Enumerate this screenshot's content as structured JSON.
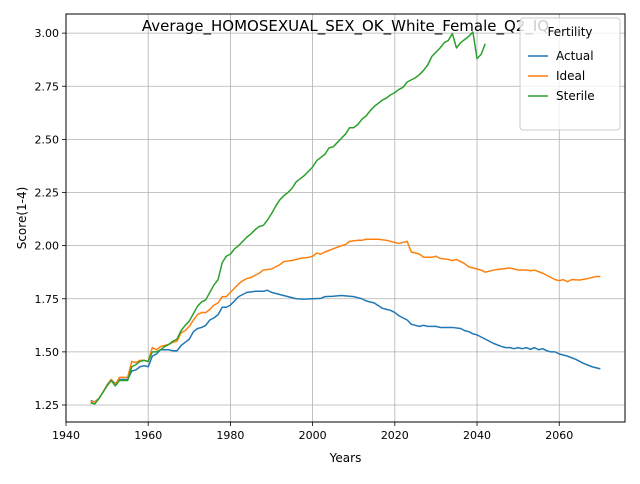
{
  "chart_data": {
    "type": "line",
    "title": "Average_HOMOSEXUAL_SEX_OK_White_Female_Q2_IQ",
    "xlabel": "Years",
    "ylabel": "Score(1-4)",
    "xlim": [
      1940,
      2076
    ],
    "ylim": [
      1.17,
      3.09
    ],
    "x_ticks": [
      1940,
      1960,
      1980,
      2000,
      2020,
      2040,
      2060
    ],
    "x_tick_labels": [
      "1940",
      "1960",
      "1980",
      "2000",
      "2020",
      "2040",
      "2060"
    ],
    "y_ticks": [
      1.25,
      1.5,
      1.75,
      2.0,
      2.25,
      2.5,
      2.75,
      3.0
    ],
    "y_tick_labels": [
      "1.25",
      "1.50",
      "1.75",
      "2.00",
      "2.25",
      "2.50",
      "2.75",
      "3.00"
    ],
    "grid": true,
    "legend": {
      "title": "Fertility",
      "placement": "top-right"
    },
    "series": [
      {
        "name": "Actual",
        "color": "#1f77b4",
        "points": [
          [
            1946,
            1.27
          ],
          [
            1947,
            1.265
          ],
          [
            1948,
            1.28
          ],
          [
            1949,
            1.31
          ],
          [
            1950,
            1.345
          ],
          [
            1951,
            1.37
          ],
          [
            1952,
            1.35
          ],
          [
            1953,
            1.37
          ],
          [
            1954,
            1.37
          ],
          [
            1955,
            1.37
          ],
          [
            1956,
            1.41
          ],
          [
            1957,
            1.415
          ],
          [
            1958,
            1.43
          ],
          [
            1959,
            1.435
          ],
          [
            1960,
            1.43
          ],
          [
            1961,
            1.48
          ],
          [
            1962,
            1.49
          ],
          [
            1963,
            1.51
          ],
          [
            1964,
            1.51
          ],
          [
            1965,
            1.51
          ],
          [
            1966,
            1.505
          ],
          [
            1967,
            1.505
          ],
          [
            1968,
            1.53
          ],
          [
            1969,
            1.545
          ],
          [
            1970,
            1.56
          ],
          [
            1971,
            1.595
          ],
          [
            1972,
            1.61
          ],
          [
            1973,
            1.615
          ],
          [
            1974,
            1.625
          ],
          [
            1975,
            1.65
          ],
          [
            1976,
            1.66
          ],
          [
            1977,
            1.675
          ],
          [
            1978,
            1.71
          ],
          [
            1979,
            1.71
          ],
          [
            1980,
            1.72
          ],
          [
            1981,
            1.74
          ],
          [
            1982,
            1.76
          ],
          [
            1983,
            1.77
          ],
          [
            1984,
            1.78
          ],
          [
            1986,
            1.785
          ],
          [
            1988,
            1.785
          ],
          [
            1989,
            1.79
          ],
          [
            1990,
            1.78
          ],
          [
            1992,
            1.77
          ],
          [
            1994,
            1.76
          ],
          [
            1996,
            1.75
          ],
          [
            1998,
            1.748
          ],
          [
            2000,
            1.75
          ],
          [
            2002,
            1.752
          ],
          [
            2003,
            1.76
          ],
          [
            2005,
            1.762
          ],
          [
            2007,
            1.765
          ],
          [
            2009,
            1.762
          ],
          [
            2010,
            1.76
          ],
          [
            2011,
            1.755
          ],
          [
            2012,
            1.75
          ],
          [
            2013,
            1.74
          ],
          [
            2015,
            1.73
          ],
          [
            2017,
            1.705
          ],
          [
            2018,
            1.7
          ],
          [
            2019,
            1.695
          ],
          [
            2020,
            1.685
          ],
          [
            2021,
            1.67
          ],
          [
            2022,
            1.66
          ],
          [
            2023,
            1.65
          ],
          [
            2024,
            1.63
          ],
          [
            2025,
            1.625
          ],
          [
            2026,
            1.62
          ],
          [
            2027,
            1.625
          ],
          [
            2028,
            1.62
          ],
          [
            2029,
            1.62
          ],
          [
            2030,
            1.62
          ],
          [
            2031,
            1.615
          ],
          [
            2032,
            1.615
          ],
          [
            2034,
            1.615
          ],
          [
            2036,
            1.61
          ],
          [
            2037,
            1.6
          ],
          [
            2038,
            1.595
          ],
          [
            2039,
            1.585
          ],
          [
            2040,
            1.58
          ],
          [
            2042,
            1.56
          ],
          [
            2044,
            1.54
          ],
          [
            2046,
            1.525
          ],
          [
            2047,
            1.52
          ],
          [
            2048,
            1.52
          ],
          [
            2049,
            1.515
          ],
          [
            2050,
            1.52
          ],
          [
            2051,
            1.515
          ],
          [
            2052,
            1.52
          ],
          [
            2053,
            1.512
          ],
          [
            2054,
            1.52
          ],
          [
            2055,
            1.51
          ],
          [
            2056,
            1.515
          ],
          [
            2057,
            1.505
          ],
          [
            2058,
            1.5
          ],
          [
            2059,
            1.5
          ],
          [
            2060,
            1.49
          ],
          [
            2062,
            1.48
          ],
          [
            2064,
            1.465
          ],
          [
            2066,
            1.445
          ],
          [
            2068,
            1.43
          ],
          [
            2070,
            1.42
          ]
        ]
      },
      {
        "name": "Ideal",
        "color": "#ff7f0e",
        "points": [
          [
            1946,
            1.265
          ],
          [
            1947,
            1.265
          ],
          [
            1948,
            1.28
          ],
          [
            1949,
            1.31
          ],
          [
            1950,
            1.345
          ],
          [
            1951,
            1.37
          ],
          [
            1952,
            1.345
          ],
          [
            1953,
            1.38
          ],
          [
            1954,
            1.38
          ],
          [
            1955,
            1.38
          ],
          [
            1956,
            1.455
          ],
          [
            1957,
            1.45
          ],
          [
            1958,
            1.46
          ],
          [
            1959,
            1.46
          ],
          [
            1960,
            1.455
          ],
          [
            1961,
            1.52
          ],
          [
            1962,
            1.51
          ],
          [
            1963,
            1.525
          ],
          [
            1964,
            1.53
          ],
          [
            1965,
            1.535
          ],
          [
            1966,
            1.545
          ],
          [
            1967,
            1.55
          ],
          [
            1968,
            1.59
          ],
          [
            1969,
            1.6
          ],
          [
            1970,
            1.62
          ],
          [
            1971,
            1.65
          ],
          [
            1972,
            1.675
          ],
          [
            1973,
            1.685
          ],
          [
            1974,
            1.685
          ],
          [
            1975,
            1.7
          ],
          [
            1976,
            1.72
          ],
          [
            1977,
            1.73
          ],
          [
            1978,
            1.76
          ],
          [
            1979,
            1.76
          ],
          [
            1980,
            1.78
          ],
          [
            1981,
            1.8
          ],
          [
            1982,
            1.82
          ],
          [
            1983,
            1.835
          ],
          [
            1984,
            1.845
          ],
          [
            1985,
            1.85
          ],
          [
            1986,
            1.86
          ],
          [
            1987,
            1.87
          ],
          [
            1988,
            1.885
          ],
          [
            1990,
            1.89
          ],
          [
            1992,
            1.91
          ],
          [
            1993,
            1.925
          ],
          [
            1995,
            1.93
          ],
          [
            1997,
            1.94
          ],
          [
            1999,
            1.945
          ],
          [
            2000,
            1.95
          ],
          [
            2001,
            1.965
          ],
          [
            2002,
            1.96
          ],
          [
            2003,
            1.97
          ],
          [
            2005,
            1.985
          ],
          [
            2007,
            2.0
          ],
          [
            2008,
            2.005
          ],
          [
            2009,
            2.02
          ],
          [
            2011,
            2.025
          ],
          [
            2012,
            2.025
          ],
          [
            2013,
            2.03
          ],
          [
            2015,
            2.03
          ],
          [
            2016,
            2.03
          ],
          [
            2018,
            2.025
          ],
          [
            2020,
            2.015
          ],
          [
            2021,
            2.01
          ],
          [
            2022,
            2.015
          ],
          [
            2023,
            2.02
          ],
          [
            2024,
            1.97
          ],
          [
            2026,
            1.96
          ],
          [
            2027,
            1.945
          ],
          [
            2029,
            1.945
          ],
          [
            2030,
            1.95
          ],
          [
            2031,
            1.94
          ],
          [
            2033,
            1.935
          ],
          [
            2034,
            1.93
          ],
          [
            2035,
            1.935
          ],
          [
            2036,
            1.925
          ],
          [
            2037,
            1.915
          ],
          [
            2038,
            1.9
          ],
          [
            2040,
            1.89
          ],
          [
            2041,
            1.885
          ],
          [
            2042,
            1.875
          ],
          [
            2044,
            1.885
          ],
          [
            2046,
            1.89
          ],
          [
            2048,
            1.895
          ],
          [
            2049,
            1.89
          ],
          [
            2050,
            1.885
          ],
          [
            2052,
            1.885
          ],
          [
            2053,
            1.882
          ],
          [
            2054,
            1.885
          ],
          [
            2056,
            1.87
          ],
          [
            2057,
            1.86
          ],
          [
            2058,
            1.85
          ],
          [
            2059,
            1.84
          ],
          [
            2060,
            1.835
          ],
          [
            2061,
            1.84
          ],
          [
            2062,
            1.83
          ],
          [
            2063,
            1.84
          ],
          [
            2065,
            1.838
          ],
          [
            2067,
            1.845
          ],
          [
            2069,
            1.855
          ],
          [
            2070,
            1.855
          ]
        ]
      },
      {
        "name": "Sterile",
        "color": "#2ca02c",
        "points": [
          [
            1946,
            1.26
          ],
          [
            1947,
            1.255
          ],
          [
            1948,
            1.28
          ],
          [
            1949,
            1.31
          ],
          [
            1950,
            1.34
          ],
          [
            1951,
            1.365
          ],
          [
            1952,
            1.34
          ],
          [
            1953,
            1.365
          ],
          [
            1954,
            1.365
          ],
          [
            1955,
            1.365
          ],
          [
            1956,
            1.43
          ],
          [
            1957,
            1.44
          ],
          [
            1958,
            1.455
          ],
          [
            1959,
            1.46
          ],
          [
            1960,
            1.455
          ],
          [
            1961,
            1.5
          ],
          [
            1962,
            1.5
          ],
          [
            1963,
            1.51
          ],
          [
            1964,
            1.525
          ],
          [
            1965,
            1.535
          ],
          [
            1966,
            1.55
          ],
          [
            1967,
            1.56
          ],
          [
            1968,
            1.6
          ],
          [
            1969,
            1.625
          ],
          [
            1970,
            1.645
          ],
          [
            1971,
            1.68
          ],
          [
            1972,
            1.715
          ],
          [
            1973,
            1.735
          ],
          [
            1974,
            1.745
          ],
          [
            1975,
            1.78
          ],
          [
            1976,
            1.815
          ],
          [
            1977,
            1.84
          ],
          [
            1978,
            1.92
          ],
          [
            1979,
            1.95
          ],
          [
            1980,
            1.96
          ],
          [
            1981,
            1.985
          ],
          [
            1982,
            2.0
          ],
          [
            1983,
            2.02
          ],
          [
            1984,
            2.04
          ],
          [
            1985,
            2.055
          ],
          [
            1986,
            2.075
          ],
          [
            1987,
            2.09
          ],
          [
            1988,
            2.095
          ],
          [
            1989,
            2.12
          ],
          [
            1990,
            2.15
          ],
          [
            1991,
            2.185
          ],
          [
            1992,
            2.215
          ],
          [
            1993,
            2.235
          ],
          [
            1994,
            2.25
          ],
          [
            1995,
            2.27
          ],
          [
            1996,
            2.3
          ],
          [
            1997,
            2.315
          ],
          [
            1998,
            2.33
          ],
          [
            1999,
            2.35
          ],
          [
            2000,
            2.37
          ],
          [
            2001,
            2.4
          ],
          [
            2002,
            2.415
          ],
          [
            2003,
            2.43
          ],
          [
            2004,
            2.46
          ],
          [
            2005,
            2.465
          ],
          [
            2006,
            2.485
          ],
          [
            2007,
            2.505
          ],
          [
            2008,
            2.525
          ],
          [
            2009,
            2.555
          ],
          [
            2010,
            2.555
          ],
          [
            2011,
            2.57
          ],
          [
            2012,
            2.595
          ],
          [
            2013,
            2.61
          ],
          [
            2014,
            2.635
          ],
          [
            2015,
            2.655
          ],
          [
            2016,
            2.67
          ],
          [
            2017,
            2.685
          ],
          [
            2018,
            2.695
          ],
          [
            2019,
            2.71
          ],
          [
            2020,
            2.72
          ],
          [
            2021,
            2.735
          ],
          [
            2022,
            2.745
          ],
          [
            2023,
            2.77
          ],
          [
            2024,
            2.78
          ],
          [
            2025,
            2.79
          ],
          [
            2026,
            2.805
          ],
          [
            2027,
            2.825
          ],
          [
            2028,
            2.85
          ],
          [
            2029,
            2.89
          ],
          [
            2030,
            2.91
          ],
          [
            2031,
            2.93
          ],
          [
            2032,
            2.955
          ],
          [
            2033,
            2.965
          ],
          [
            2034,
            2.998
          ],
          [
            2035,
            2.93
          ],
          [
            2036,
            2.955
          ],
          [
            2037,
            2.97
          ],
          [
            2038,
            2.985
          ],
          [
            2039,
            3.005
          ],
          [
            2040,
            2.88
          ],
          [
            2041,
            2.9
          ],
          [
            2042,
            2.95
          ]
        ]
      }
    ]
  }
}
